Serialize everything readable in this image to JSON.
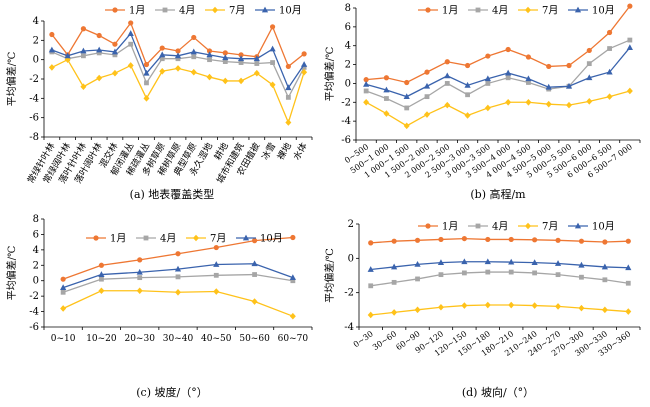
{
  "legend_labels": [
    "1月",
    "4月",
    "7月",
    "10月"
  ],
  "colors": {
    "s1": "#ee7733",
    "s2": "#a6a6a6",
    "s3": "#ffc21a",
    "s4": "#3a63ad"
  },
  "chart_data": [
    {
      "panel": "a",
      "type": "line",
      "caption": "(a) 地表覆盖类型",
      "xlabel": "",
      "ylabel": "平均偏差/℃",
      "ylim": [
        -8,
        4
      ],
      "yticks": [
        -8,
        -6,
        -4,
        -2,
        0,
        2,
        4
      ],
      "legend": "top",
      "categories": [
        "常绿针叶林",
        "常绿阔叶林",
        "落叶针叶林",
        "落叶阔叶林",
        "混交林",
        "郁闭灌丛",
        "稀疏灌丛",
        "多树草原",
        "稀树草原",
        "典型草原",
        "永久湿地",
        "耕地",
        "城市和建筑",
        "农田植被",
        "冰雪",
        "裸地",
        "水体"
      ],
      "series": [
        {
          "name": "1月",
          "values": [
            2.6,
            0.5,
            3.2,
            2.5,
            1.6,
            3.8,
            -0.5,
            1.2,
            0.9,
            2.3,
            0.9,
            0.7,
            0.5,
            0.3,
            3.4,
            -0.7,
            0.6
          ]
        },
        {
          "name": "4月",
          "values": [
            0.8,
            0.1,
            0.4,
            0.7,
            0.5,
            1.6,
            -2.4,
            0.1,
            0.1,
            0.3,
            0.0,
            -0.2,
            -0.3,
            -0.4,
            -0.3,
            -3.9,
            -0.8
          ]
        },
        {
          "name": "7月",
          "values": [
            -0.8,
            0.0,
            -2.8,
            -1.9,
            -1.4,
            -0.6,
            -4.0,
            -1.2,
            -0.9,
            -1.3,
            -1.8,
            -2.2,
            -2.2,
            -1.4,
            -2.6,
            -6.5,
            -1.3
          ]
        },
        {
          "name": "10月",
          "values": [
            1.0,
            0.4,
            0.9,
            1.0,
            0.8,
            2.7,
            -1.4,
            0.5,
            0.4,
            0.8,
            0.5,
            0.2,
            0.1,
            0.1,
            1.1,
            -2.9,
            -0.5
          ]
        }
      ]
    },
    {
      "panel": "b",
      "type": "line",
      "caption": "(b) 高程/m",
      "xlabel": "",
      "ylabel": "平均偏差/℃",
      "ylim": [
        -6,
        8
      ],
      "yticks": [
        -6,
        -4,
        -2,
        0,
        2,
        4,
        6,
        8
      ],
      "legend": "top",
      "categories": [
        "0~500",
        "500~1 000",
        "1 000~1 500",
        "1 500~2 000",
        "2 000~2 500",
        "2 500~3 000",
        "3 000~3 500",
        "3 500~4 000",
        "4 000~4 500",
        "4 500~5 000",
        "5 000~5 500",
        "5 500~6 000",
        "6 000~6 500",
        "6 500~7 000"
      ],
      "series": [
        {
          "name": "1月",
          "values": [
            0.4,
            0.6,
            0.1,
            1.2,
            2.3,
            1.9,
            2.9,
            3.6,
            2.8,
            1.8,
            1.9,
            3.5,
            5.4,
            8.2
          ]
        },
        {
          "name": "4月",
          "values": [
            -0.8,
            -1.6,
            -2.6,
            -1.4,
            0.0,
            -1.2,
            0.0,
            0.6,
            0.1,
            -0.6,
            -0.3,
            2.1,
            3.7,
            4.6
          ]
        },
        {
          "name": "7月",
          "values": [
            -2.0,
            -3.2,
            -4.5,
            -3.3,
            -2.3,
            -3.4,
            -2.6,
            -2.0,
            -2.0,
            -2.2,
            -2.3,
            -1.9,
            -1.4,
            -0.8
          ]
        },
        {
          "name": "10月",
          "values": [
            -0.1,
            -0.7,
            -1.4,
            -0.3,
            0.8,
            -0.2,
            0.5,
            1.1,
            0.5,
            -0.4,
            -0.3,
            0.6,
            1.2,
            3.8
          ]
        }
      ]
    },
    {
      "panel": "c",
      "type": "line",
      "caption": "(c) 坡度/（°）",
      "xlabel": "",
      "ylabel": "平均偏差/℃",
      "ylim": [
        -6,
        8
      ],
      "yticks": [
        -6,
        -4,
        -2,
        0,
        2,
        4,
        6,
        8
      ],
      "legend": "top",
      "categories": [
        "0~10",
        "10~20",
        "20~30",
        "30~40",
        "40~50",
        "50~60",
        "60~70"
      ],
      "series": [
        {
          "name": "1月",
          "values": [
            0.2,
            2.0,
            2.7,
            3.5,
            4.3,
            5.2,
            5.6
          ]
        },
        {
          "name": "4月",
          "values": [
            -1.5,
            0.2,
            0.4,
            0.5,
            0.7,
            0.8,
            0.0
          ]
        },
        {
          "name": "7月",
          "values": [
            -3.6,
            -1.3,
            -1.3,
            -1.5,
            -1.4,
            -2.7,
            -4.6
          ]
        },
        {
          "name": "10月",
          "values": [
            -0.9,
            0.8,
            1.1,
            1.5,
            2.1,
            2.2,
            0.4
          ]
        }
      ]
    },
    {
      "panel": "d",
      "type": "line",
      "caption": "(d) 坡向/（°）",
      "xlabel": "",
      "ylabel": "平均偏差/℃",
      "ylim": [
        -4,
        2
      ],
      "yticks": [
        -4,
        -2,
        0,
        2
      ],
      "legend": "top",
      "categories": [
        "0~30",
        "30~60",
        "60~90",
        "90~120",
        "120~150",
        "150~180",
        "180~210",
        "210~240",
        "240~270",
        "270~300",
        "300~330",
        "330~360"
      ],
      "series": [
        {
          "name": "1月",
          "values": [
            0.9,
            1.0,
            1.05,
            1.1,
            1.15,
            1.1,
            1.1,
            1.08,
            1.05,
            1.0,
            0.95,
            1.0
          ]
        },
        {
          "name": "4月",
          "values": [
            -1.6,
            -1.4,
            -1.2,
            -0.95,
            -0.85,
            -0.8,
            -0.8,
            -0.85,
            -0.95,
            -1.1,
            -1.25,
            -1.45
          ]
        },
        {
          "name": "7月",
          "values": [
            -3.3,
            -3.15,
            -3.0,
            -2.85,
            -2.75,
            -2.72,
            -2.72,
            -2.75,
            -2.8,
            -2.9,
            -3.0,
            -3.1
          ]
        },
        {
          "name": "10月",
          "values": [
            -0.65,
            -0.5,
            -0.35,
            -0.25,
            -0.2,
            -0.2,
            -0.22,
            -0.25,
            -0.3,
            -0.4,
            -0.5,
            -0.55
          ]
        }
      ]
    }
  ]
}
